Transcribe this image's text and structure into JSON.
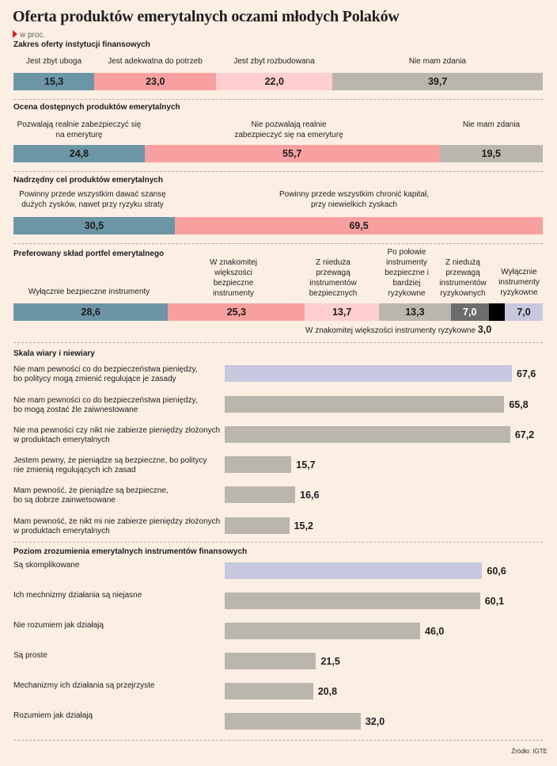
{
  "title": "Oferta produktów emerytalnych oczami młodych Polaków",
  "unit": "w proc.",
  "source": "Źródło: IGTE",
  "colors": {
    "teal": "#6c95a6",
    "pink": "#f8a0a0",
    "light_pink": "#ffcece",
    "gray": "#bab6ad",
    "dark_gray": "#6d6d6d",
    "black": "#000000",
    "lavender": "#c7c8df",
    "unit_marker": "#d2232a"
  },
  "chart_data": [
    {
      "type": "bar",
      "stacked": true,
      "title": "Zakres oferty instytucji finansowych",
      "categories": [
        "Jest zbyt uboga",
        "Jest adekwatna do potrzeb",
        "Jest zbyt rozbudowana",
        "Nie mam zdania"
      ],
      "values": [
        15.3,
        23.0,
        22.0,
        39.7
      ],
      "value_labels": [
        "15,3",
        "23,0",
        "22,0",
        "39,7"
      ]
    },
    {
      "type": "bar",
      "stacked": true,
      "title": "Ocena dostępnych produktów emerytalnych",
      "categories": [
        "Pozwalają realnie zabezpieczyć się na emeryturę",
        "Nie pozwalają realnie zabezpieczyć się na emeryturę",
        "Nie mam zdania"
      ],
      "values": [
        24.8,
        55.7,
        19.5
      ],
      "value_labels": [
        "24,8",
        "55,7",
        "19,5"
      ]
    },
    {
      "type": "bar",
      "stacked": true,
      "title": "Nadrzędny cel produktów emerytalnych",
      "categories": [
        "Powinny przede wszystkim dawać szansę dużych zysków, nawet przy ryzyku straty",
        "Powinny przede wszystkim chronić kapitał, przy niewielkich zyskach"
      ],
      "values": [
        30.5,
        69.5
      ],
      "value_labels": [
        "30,5",
        "69,5"
      ]
    },
    {
      "type": "bar",
      "stacked": true,
      "title": "Preferowany skład portfel emerytalnego",
      "categories": [
        "Wyłącznie bezpieczne instrumenty",
        "W znakomitej większości bezpieczne instrumenty",
        "Z nieduża przewagą instrumentów bezpiecznych",
        "Po połowie instrumenty bezpieczne i bardziej ryzykowne",
        "Z niedużą przewagą instrumentów ryzykownych",
        "W znakomitej większości instrumenty ryzykowne",
        "Wyłącznie instrumenty ryzykowne"
      ],
      "values": [
        28.6,
        25.3,
        13.7,
        13.3,
        7.0,
        3.0,
        7.0
      ],
      "value_labels": [
        "28,6",
        "25,3",
        "13,7",
        "13,3",
        "7,0",
        "3,0",
        "7,0"
      ],
      "note": "W znakomitej większości instrumenty ryzykowne"
    },
    {
      "type": "bar",
      "orientation": "horizontal",
      "title": "Skala wiary i niewiary",
      "categories": [
        "Nie mam pewności co do bezpieczeństwa pieniędzy, bo politycy mogą zmienić regulujące je zasady",
        "Nie mam pewności co do bezpieczeństwa pieniędzy, bo mogą zostać źle zaiwnestowane",
        "Nie ma pewności czy nikt nie zabierze pieniędzy złożonych w produktach emerytalnych",
        "Jestem pewny, że pieniądze są bezpieczne, bo politycy nie zmienią regulujących ich zasad",
        "Mam pewność, że pieniądze są bezpieczne, bo są dobrze zainwetsowane",
        "Mam pewność, że nikt mi nie zabierze pieniędzy złożonych w produktach emerytalnych"
      ],
      "label_lines": [
        [
          "Nie mam pewności co do bezpieczeństwa pieniędzy,",
          "bo politycy mogą zmienić regulujące je zasady"
        ],
        [
          "Nie mam pewności co do bezpieczeństwa pieniędzy,",
          "bo mogą zostać źle zaiwnestowane"
        ],
        [
          "Nie ma pewności czy nikt nie zabierze pieniędzy złożonych",
          "w produktach emerytalnych"
        ],
        [
          "Jestem pewny, że pieniądze są bezpieczne, bo politycy",
          "nie zmienią regulujących ich zasad"
        ],
        [
          "Mam pewność, że pieniądze są bezpieczne,",
          "bo są dobrze zainwetsowane"
        ],
        [
          "Mam pewność, że nikt mi nie zabierze pieniędzy złożonych",
          "w produktach emerytalnych"
        ]
      ],
      "values": [
        67.6,
        65.8,
        67.2,
        15.7,
        16.6,
        15.2
      ],
      "value_labels": [
        "67,6",
        "65,8",
        "67,2",
        "15,7",
        "16,6",
        "15,2"
      ],
      "xlim": [
        0,
        100
      ]
    },
    {
      "type": "bar",
      "orientation": "horizontal",
      "title": "Poziom zrozumienia emerytalnych instrumentów finansowych",
      "categories": [
        "Są skomplikowane",
        "Ich mechnizmy działania są niejasne",
        "Nie rozumiem jak działają",
        "Są proste",
        "Mechanizmy ich działania są przejrzyste",
        "Rozumiem jak działają"
      ],
      "values": [
        60.6,
        60.1,
        46.0,
        21.5,
        20.8,
        32.0
      ],
      "value_labels": [
        "60,6",
        "60,1",
        "46,0",
        "21,5",
        "20,8",
        "32,0"
      ],
      "xlim": [
        0,
        100
      ]
    }
  ]
}
